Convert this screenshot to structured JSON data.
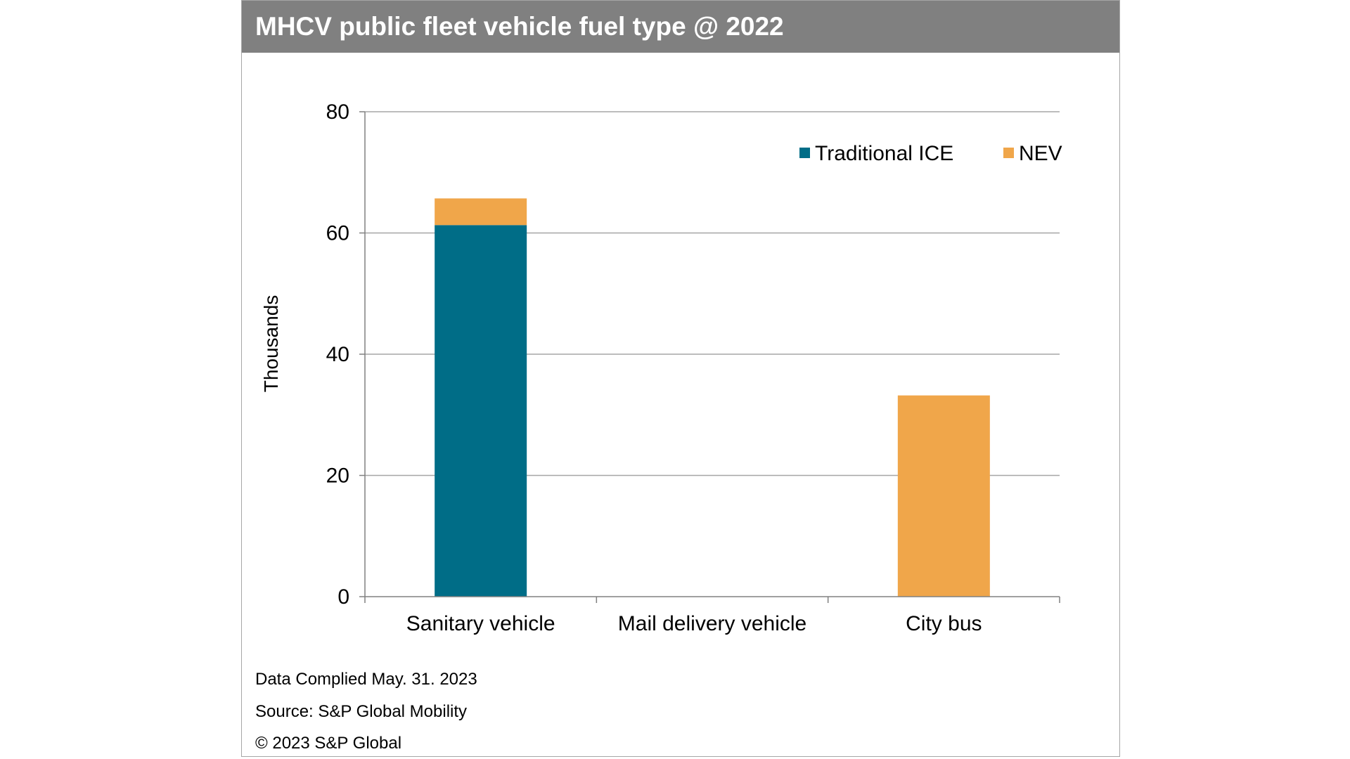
{
  "colors": {
    "header_bg": "#808080",
    "traditional_ice": "#006D87",
    "nev": "#F0A64A",
    "grid": "#a6a6a6"
  },
  "header": {
    "title": "MHCV public fleet vehicle fuel type @ 2022"
  },
  "footnotes": {
    "compiled": "Data Complied May. 31. 2023",
    "source": "Source: S&P Global Mobility",
    "copyright": "© 2023 S&P Global"
  },
  "chart_data": {
    "type": "bar",
    "stacked": true,
    "categories": [
      "Sanitary vehicle",
      "Mail delivery vehicle",
      "City bus"
    ],
    "series": [
      {
        "name": "Traditional ICE",
        "values": [
          61.3,
          0,
          0
        ]
      },
      {
        "name": "NEV",
        "values": [
          4.4,
          0,
          33.2
        ]
      }
    ],
    "title": "",
    "xlabel": "",
    "ylabel": "Thousands",
    "ylim": [
      0,
      80
    ],
    "yticks": [
      0,
      20,
      40,
      60,
      80
    ],
    "grid": true,
    "legend_position": "top-right"
  }
}
